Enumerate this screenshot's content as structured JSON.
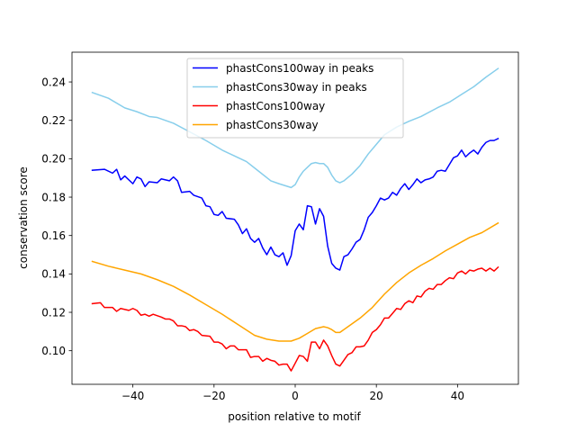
{
  "chart_data": {
    "type": "line",
    "title": "",
    "xlabel": "position relative to motif",
    "ylabel": "conservation score",
    "xlim": [
      -55,
      55
    ],
    "ylim": [
      0.0825,
      0.2555
    ],
    "xticks": [
      -40,
      -20,
      0,
      20,
      40
    ],
    "xtick_labels": [
      "−40",
      "−20",
      "0",
      "20",
      "40"
    ],
    "yticks": [
      0.1,
      0.12,
      0.14,
      0.16,
      0.18,
      0.2,
      0.22,
      0.24
    ],
    "ytick_labels": [
      "0.10",
      "0.12",
      "0.14",
      "0.16",
      "0.18",
      "0.20",
      "0.22",
      "0.24"
    ],
    "legend_position": "top-center",
    "series": [
      {
        "name": "phastCons100way in peaks",
        "color": "#0000ff",
        "keypoints": [
          [
            -50,
            0.194
          ],
          [
            -47,
            0.1945
          ],
          [
            -45,
            0.1925
          ],
          [
            -44,
            0.1945
          ],
          [
            -43,
            0.189
          ],
          [
            -42,
            0.191
          ],
          [
            -40,
            0.187
          ],
          [
            -39,
            0.1905
          ],
          [
            -38,
            0.1895
          ],
          [
            -37,
            0.1855
          ],
          [
            -36,
            0.188
          ],
          [
            -34,
            0.1875
          ],
          [
            -33,
            0.1895
          ],
          [
            -31,
            0.1885
          ],
          [
            -30,
            0.1905
          ],
          [
            -29,
            0.1885
          ],
          [
            -28,
            0.1825
          ],
          [
            -26,
            0.183
          ],
          [
            -25,
            0.181
          ],
          [
            -23,
            0.1795
          ],
          [
            -22,
            0.1755
          ],
          [
            -21,
            0.175
          ],
          [
            -20,
            0.171
          ],
          [
            -19,
            0.1705
          ],
          [
            -18,
            0.1725
          ],
          [
            -17,
            0.169
          ],
          [
            -15,
            0.1685
          ],
          [
            -14,
            0.1655
          ],
          [
            -13,
            0.161
          ],
          [
            -12,
            0.1635
          ],
          [
            -11,
            0.1585
          ],
          [
            -10,
            0.1565
          ],
          [
            -9,
            0.1585
          ],
          [
            -8,
            0.1535
          ],
          [
            -7,
            0.15
          ],
          [
            -6,
            0.154
          ],
          [
            -5,
            0.15
          ],
          [
            -4,
            0.149
          ],
          [
            -3,
            0.151
          ],
          [
            -2,
            0.1445
          ],
          [
            -1,
            0.1495
          ],
          [
            0,
            0.1625
          ],
          [
            1,
            0.166
          ],
          [
            2,
            0.163
          ],
          [
            3,
            0.1755
          ],
          [
            4,
            0.175
          ],
          [
            5,
            0.166
          ],
          [
            6,
            0.174
          ],
          [
            7,
            0.17
          ],
          [
            8,
            0.1545
          ],
          [
            9,
            0.1455
          ],
          [
            10,
            0.143
          ],
          [
            11,
            0.142
          ],
          [
            12,
            0.149
          ],
          [
            13,
            0.15
          ],
          [
            14,
            0.153
          ],
          [
            15,
            0.1565
          ],
          [
            16,
            0.158
          ],
          [
            17,
            0.163
          ],
          [
            18,
            0.1695
          ],
          [
            19,
            0.172
          ],
          [
            20,
            0.1755
          ],
          [
            21,
            0.1795
          ],
          [
            22,
            0.1785
          ],
          [
            23,
            0.1795
          ],
          [
            24,
            0.1825
          ],
          [
            25,
            0.181
          ],
          [
            26,
            0.1845
          ],
          [
            27,
            0.187
          ],
          [
            28,
            0.184
          ],
          [
            29,
            0.1865
          ],
          [
            30,
            0.1895
          ],
          [
            31,
            0.1875
          ],
          [
            32,
            0.189
          ],
          [
            33,
            0.1895
          ],
          [
            34,
            0.1905
          ],
          [
            35,
            0.1935
          ],
          [
            36,
            0.194
          ],
          [
            37,
            0.1935
          ],
          [
            38,
            0.197
          ],
          [
            39,
            0.2005
          ],
          [
            40,
            0.2015
          ],
          [
            41,
            0.2045
          ],
          [
            42,
            0.201
          ],
          [
            43,
            0.203
          ],
          [
            44,
            0.2045
          ],
          [
            45,
            0.2025
          ],
          [
            46,
            0.206
          ],
          [
            47,
            0.2085
          ],
          [
            48,
            0.2095
          ],
          [
            49,
            0.2095
          ],
          [
            50,
            0.2105
          ]
        ]
      },
      {
        "name": "phastCons30way in peaks",
        "color": "#87ceeb",
        "keypoints": [
          [
            -50,
            0.2345
          ],
          [
            -46,
            0.2315
          ],
          [
            -42,
            0.2265
          ],
          [
            -39,
            0.2245
          ],
          [
            -36,
            0.222
          ],
          [
            -34,
            0.2215
          ],
          [
            -30,
            0.2185
          ],
          [
            -26,
            0.214
          ],
          [
            -22,
            0.2095
          ],
          [
            -18,
            0.2045
          ],
          [
            -15,
            0.2015
          ],
          [
            -12,
            0.1985
          ],
          [
            -9,
            0.1935
          ],
          [
            -6,
            0.1885
          ],
          [
            -4,
            0.187
          ],
          [
            -1,
            0.185
          ],
          [
            0,
            0.1865
          ],
          [
            1,
            0.1905
          ],
          [
            2,
            0.1935
          ],
          [
            3,
            0.1955
          ],
          [
            4,
            0.1975
          ],
          [
            5,
            0.198
          ],
          [
            6,
            0.1975
          ],
          [
            7,
            0.1975
          ],
          [
            8,
            0.1955
          ],
          [
            9,
            0.1915
          ],
          [
            10,
            0.1885
          ],
          [
            11,
            0.1875
          ],
          [
            12,
            0.1885
          ],
          [
            14,
            0.192
          ],
          [
            16,
            0.1965
          ],
          [
            18,
            0.2025
          ],
          [
            20,
            0.2075
          ],
          [
            22,
            0.2125
          ],
          [
            25,
            0.2165
          ],
          [
            28,
            0.2195
          ],
          [
            31,
            0.222
          ],
          [
            35,
            0.2265
          ],
          [
            38,
            0.2295
          ],
          [
            41,
            0.2335
          ],
          [
            44,
            0.2375
          ],
          [
            47,
            0.2425
          ],
          [
            50,
            0.247
          ]
        ]
      },
      {
        "name": "phastCons100way",
        "color": "#ff0000",
        "keypoints": [
          [
            -50,
            0.1245
          ],
          [
            -48,
            0.125
          ],
          [
            -47,
            0.1225
          ],
          [
            -45,
            0.1225
          ],
          [
            -44,
            0.1205
          ],
          [
            -43,
            0.122
          ],
          [
            -41,
            0.121
          ],
          [
            -40,
            0.122
          ],
          [
            -39,
            0.121
          ],
          [
            -38,
            0.1185
          ],
          [
            -37,
            0.119
          ],
          [
            -36,
            0.118
          ],
          [
            -35,
            0.119
          ],
          [
            -33,
            0.1175
          ],
          [
            -32,
            0.1165
          ],
          [
            -31,
            0.1165
          ],
          [
            -30,
            0.1155
          ],
          [
            -29,
            0.113
          ],
          [
            -28,
            0.113
          ],
          [
            -27,
            0.1125
          ],
          [
            -26,
            0.1105
          ],
          [
            -25,
            0.111
          ],
          [
            -24,
            0.11
          ],
          [
            -23,
            0.108
          ],
          [
            -21,
            0.1075
          ],
          [
            -20,
            0.1045
          ],
          [
            -19,
            0.1045
          ],
          [
            -18,
            0.1035
          ],
          [
            -17,
            0.101
          ],
          [
            -16,
            0.1025
          ],
          [
            -15,
            0.1025
          ],
          [
            -14,
            0.1005
          ],
          [
            -13,
            0.1005
          ],
          [
            -12,
            0.1005
          ],
          [
            -11,
            0.0965
          ],
          [
            -10,
            0.097
          ],
          [
            -9,
            0.097
          ],
          [
            -8,
            0.0945
          ],
          [
            -7,
            0.096
          ],
          [
            -6,
            0.095
          ],
          [
            -5,
            0.0945
          ],
          [
            -4,
            0.0925
          ],
          [
            -3,
            0.093
          ],
          [
            -2,
            0.093
          ],
          [
            -1,
            0.0895
          ],
          [
            0,
            0.0935
          ],
          [
            1,
            0.0975
          ],
          [
            2,
            0.097
          ],
          [
            3,
            0.0945
          ],
          [
            4,
            0.1045
          ],
          [
            5,
            0.1045
          ],
          [
            6,
            0.101
          ],
          [
            7,
            0.1055
          ],
          [
            8,
            0.1025
          ],
          [
            9,
            0.0975
          ],
          [
            10,
            0.093
          ],
          [
            11,
            0.092
          ],
          [
            12,
            0.095
          ],
          [
            13,
            0.098
          ],
          [
            14,
            0.099
          ],
          [
            15,
            0.102
          ],
          [
            16,
            0.102
          ],
          [
            17,
            0.1025
          ],
          [
            18,
            0.1055
          ],
          [
            19,
            0.1095
          ],
          [
            20,
            0.111
          ],
          [
            21,
            0.1135
          ],
          [
            22,
            0.117
          ],
          [
            23,
            0.117
          ],
          [
            24,
            0.1195
          ],
          [
            25,
            0.122
          ],
          [
            26,
            0.1215
          ],
          [
            27,
            0.1245
          ],
          [
            28,
            0.126
          ],
          [
            29,
            0.125
          ],
          [
            30,
            0.1285
          ],
          [
            31,
            0.128
          ],
          [
            32,
            0.131
          ],
          [
            33,
            0.1325
          ],
          [
            34,
            0.132
          ],
          [
            35,
            0.1345
          ],
          [
            36,
            0.1345
          ],
          [
            37,
            0.1365
          ],
          [
            38,
            0.138
          ],
          [
            39,
            0.1375
          ],
          [
            40,
            0.1405
          ],
          [
            41,
            0.1415
          ],
          [
            42,
            0.14
          ],
          [
            43,
            0.142
          ],
          [
            44,
            0.1415
          ],
          [
            45,
            0.1425
          ],
          [
            46,
            0.143
          ],
          [
            47,
            0.1415
          ],
          [
            48,
            0.143
          ],
          [
            49,
            0.1415
          ],
          [
            50,
            0.1435
          ]
        ]
      },
      {
        "name": "phastCons30way",
        "color": "#ffa500",
        "keypoints": [
          [
            -50,
            0.1465
          ],
          [
            -46,
            0.144
          ],
          [
            -42,
            0.142
          ],
          [
            -38,
            0.14
          ],
          [
            -34,
            0.137
          ],
          [
            -30,
            0.1335
          ],
          [
            -26,
            0.129
          ],
          [
            -22,
            0.124
          ],
          [
            -18,
            0.119
          ],
          [
            -14,
            0.1135
          ],
          [
            -10,
            0.108
          ],
          [
            -7,
            0.106
          ],
          [
            -4,
            0.105
          ],
          [
            -1,
            0.105
          ],
          [
            1,
            0.1065
          ],
          [
            3,
            0.109
          ],
          [
            5,
            0.1115
          ],
          [
            7,
            0.1125
          ],
          [
            8,
            0.112
          ],
          [
            9,
            0.111
          ],
          [
            10,
            0.1095
          ],
          [
            11,
            0.1095
          ],
          [
            13,
            0.1125
          ],
          [
            16,
            0.117
          ],
          [
            19,
            0.1225
          ],
          [
            22,
            0.1295
          ],
          [
            25,
            0.1355
          ],
          [
            28,
            0.1405
          ],
          [
            31,
            0.1445
          ],
          [
            34,
            0.148
          ],
          [
            37,
            0.152
          ],
          [
            40,
            0.1555
          ],
          [
            43,
            0.159
          ],
          [
            46,
            0.1615
          ],
          [
            50,
            0.1665
          ]
        ]
      }
    ]
  }
}
